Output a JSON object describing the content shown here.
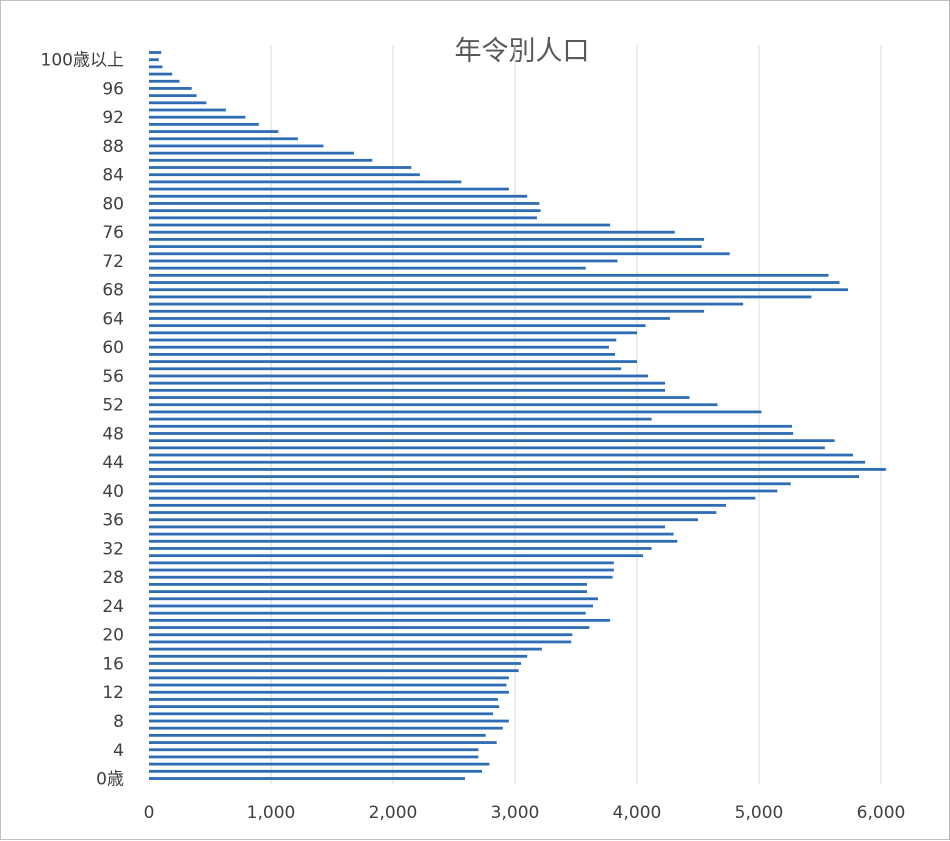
{
  "chart_data": {
    "type": "bar",
    "orientation": "horizontal",
    "title": "年令別人口",
    "xlabel": "",
    "ylabel": "",
    "xlim": [
      0,
      6000
    ],
    "x_ticks": [
      0,
      1000,
      2000,
      3000,
      4000,
      5000,
      6000
    ],
    "x_tick_labels": [
      "0",
      "1,000",
      "2,000",
      "3,000",
      "4,000",
      "5,000",
      "6,000"
    ],
    "grid": "vertical",
    "legend": "none",
    "bar_color": "#2e6db4",
    "y_tick_labels": [
      {
        "index": 0,
        "label": "0歳"
      },
      {
        "index": 4,
        "label": "4"
      },
      {
        "index": 8,
        "label": "8"
      },
      {
        "index": 12,
        "label": "12"
      },
      {
        "index": 16,
        "label": "16"
      },
      {
        "index": 20,
        "label": "20"
      },
      {
        "index": 24,
        "label": "24"
      },
      {
        "index": 28,
        "label": "28"
      },
      {
        "index": 32,
        "label": "32"
      },
      {
        "index": 36,
        "label": "36"
      },
      {
        "index": 40,
        "label": "40"
      },
      {
        "index": 44,
        "label": "44"
      },
      {
        "index": 48,
        "label": "48"
      },
      {
        "index": 52,
        "label": "52"
      },
      {
        "index": 56,
        "label": "56"
      },
      {
        "index": 60,
        "label": "60"
      },
      {
        "index": 64,
        "label": "64"
      },
      {
        "index": 68,
        "label": "68"
      },
      {
        "index": 72,
        "label": "72"
      },
      {
        "index": 76,
        "label": "76"
      },
      {
        "index": 80,
        "label": "80"
      },
      {
        "index": 84,
        "label": "84"
      },
      {
        "index": 88,
        "label": "88"
      },
      {
        "index": 92,
        "label": "92"
      },
      {
        "index": 96,
        "label": "96"
      },
      {
        "index": 100,
        "label": "100歳以上"
      }
    ],
    "values": [
      2590,
      2730,
      2790,
      2700,
      2700,
      2850,
      2760,
      2900,
      2950,
      2820,
      2870,
      2860,
      2950,
      2930,
      2950,
      3030,
      3050,
      3100,
      3220,
      3460,
      3470,
      3610,
      3780,
      3580,
      3640,
      3680,
      3590,
      3590,
      3800,
      3810,
      3810,
      4050,
      4120,
      4330,
      4300,
      4230,
      4500,
      4650,
      4730,
      4970,
      5150,
      5260,
      5820,
      6040,
      5870,
      5770,
      5540,
      5620,
      5280,
      5270,
      4120,
      5020,
      4660,
      4430,
      4230,
      4230,
      4090,
      3870,
      4000,
      3820,
      3770,
      3830,
      4000,
      4070,
      4270,
      4550,
      4870,
      5430,
      5730,
      5660,
      5570,
      3580,
      3840,
      4760,
      4530,
      4550,
      4310,
      3780,
      3180,
      3210,
      3200,
      3100,
      2950,
      2560,
      2220,
      2150,
      1830,
      1680,
      1430,
      1220,
      1060,
      900,
      790,
      630,
      470,
      390,
      350,
      250,
      190,
      110,
      80,
      100
    ]
  }
}
